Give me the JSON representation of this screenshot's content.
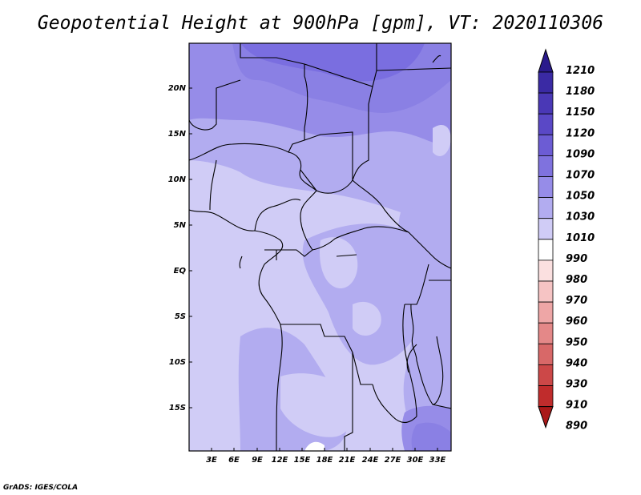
{
  "title": "Geopotential Height at 900hPa [gpm], VT: 2020110306",
  "credit": "GrADS: IGES/COLA",
  "map": {
    "lat_ticks": [
      "20N",
      "15N",
      "10N",
      "5N",
      "EQ",
      "5S",
      "10S",
      "15S"
    ],
    "lon_ticks": [
      "3E",
      "6E",
      "9E",
      "12E",
      "15E",
      "18E",
      "21E",
      "24E",
      "27E",
      "30E",
      "33E"
    ]
  },
  "colorbar": {
    "labels": [
      "1210",
      "1180",
      "1150",
      "1120",
      "1090",
      "1070",
      "1050",
      "1030",
      "1010",
      "990",
      "980",
      "970",
      "960",
      "950",
      "940",
      "930",
      "910",
      "890"
    ],
    "colors": [
      "#2a1a8c",
      "#3a2aa4",
      "#4a38b6",
      "#5a48c6",
      "#6c5cd4",
      "#7f72de",
      "#968ce8",
      "#b2acf0",
      "#d0ccf6",
      "#ffffff",
      "#fbe0e0",
      "#f6c4c4",
      "#eea6a6",
      "#e48888",
      "#d86868",
      "#cc4848",
      "#c02c2c",
      "#aa1818"
    ]
  },
  "legend_colors": {
    "land_dark": "#7a6ee0",
    "land_mid": "#968ce8",
    "land_light": "#b2acf0",
    "land_pale": "#d0ccf6",
    "land_white": "#ffffff"
  }
}
